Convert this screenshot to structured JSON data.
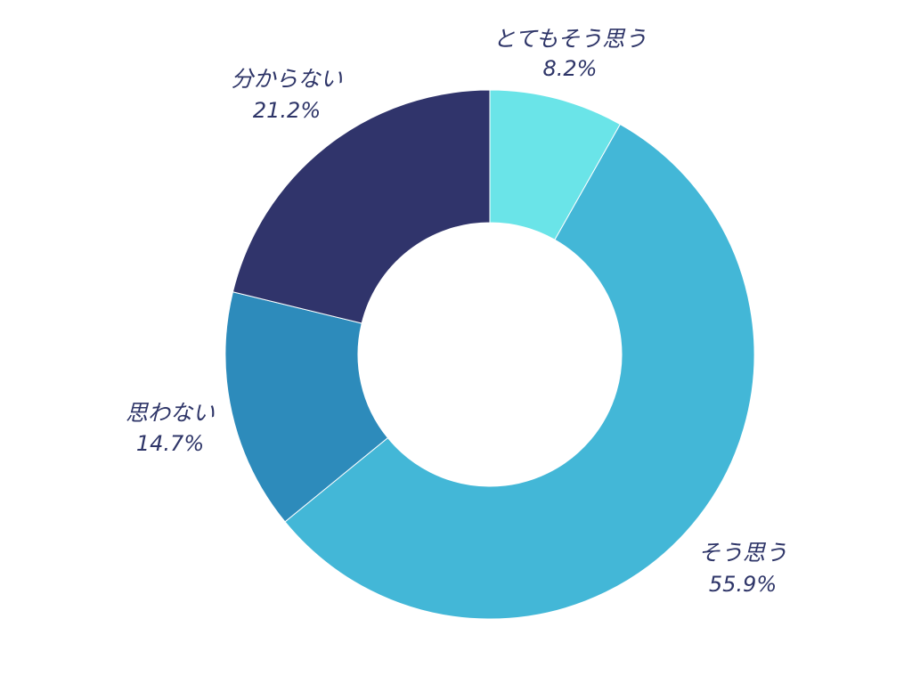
{
  "chart_data": {
    "type": "pie",
    "donut": true,
    "title": "",
    "legend": "none",
    "slices": [
      {
        "label": "とてもそう思う",
        "value": 8.2,
        "value_label": "8.2%",
        "color": "#6ae4e8"
      },
      {
        "label": "そう思う",
        "value": 55.9,
        "value_label": "55.9%",
        "color": "#43b7d7"
      },
      {
        "label": "思わない",
        "value": 14.7,
        "value_label": "14.7%",
        "color": "#2d8bbb"
      },
      {
        "label": "分からない",
        "value": 21.2,
        "value_label": "21.2%",
        "color": "#30346b"
      }
    ]
  }
}
